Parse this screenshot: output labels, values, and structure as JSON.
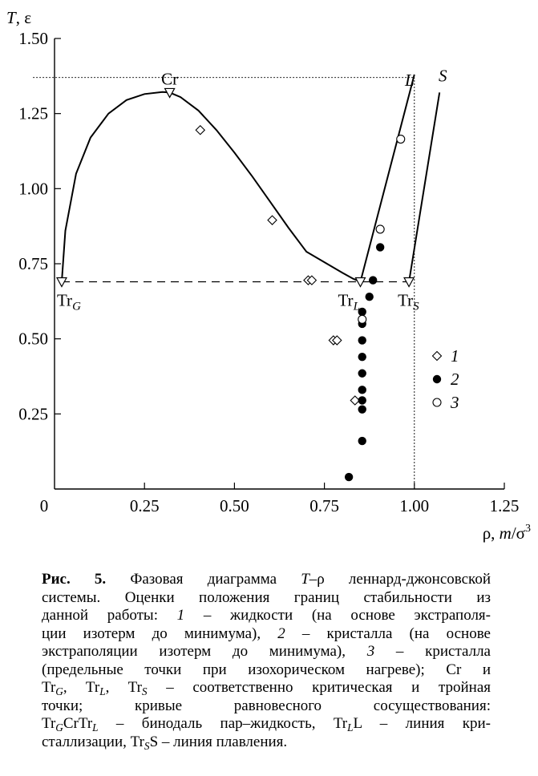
{
  "chart_data": {
    "type": "scatter",
    "title": "",
    "ylabel_parts": [
      "T",
      ", ε"
    ],
    "xlabel_parts": [
      "ρ, ",
      "m",
      "/σ",
      "3"
    ],
    "xlim": [
      0,
      1.25
    ],
    "ylim": [
      0,
      1.5
    ],
    "xticks": [
      0,
      0.25,
      0.5,
      0.75,
      1.0,
      1.25
    ],
    "xtick_labels": [
      "0",
      "0.25",
      "0.50",
      "0.75",
      "1.00",
      "1.25"
    ],
    "yticks": [
      0.25,
      0.5,
      0.75,
      1.0,
      1.25,
      1.5
    ],
    "ytick_labels": [
      "0.25",
      "0.50",
      "0.75",
      "1.00",
      "1.25",
      "1.50"
    ],
    "series": [
      {
        "name": "1",
        "marker": "diamond-open",
        "x": [
          0.405,
          0.605,
          0.705,
          0.715,
          0.775,
          0.785,
          0.835
        ],
        "y": [
          1.195,
          0.895,
          0.695,
          0.695,
          0.495,
          0.495,
          0.295
        ]
      },
      {
        "name": "2",
        "marker": "circle-filled",
        "x": [
          0.818,
          0.855,
          0.855,
          0.855,
          0.855,
          0.855,
          0.855,
          0.855,
          0.855,
          0.855,
          0.875,
          0.885,
          0.905
        ],
        "y": [
          0.04,
          0.16,
          0.265,
          0.295,
          0.33,
          0.385,
          0.44,
          0.495,
          0.55,
          0.59,
          0.64,
          0.695,
          0.805
        ]
      },
      {
        "name": "3",
        "marker": "circle-open",
        "x": [
          0.855,
          0.905,
          0.962
        ],
        "y": [
          0.565,
          0.865,
          1.165
        ]
      }
    ],
    "lines": [
      {
        "label": "Tr_G Cr Tr_L binodal",
        "style": "solid",
        "x": [
          0.02,
          0.03,
          0.06,
          0.1,
          0.15,
          0.2,
          0.25,
          0.3,
          0.32,
          0.35,
          0.4,
          0.45,
          0.5,
          0.55,
          0.6,
          0.65,
          0.7,
          0.75,
          0.8,
          0.83,
          0.85
        ],
        "y": [
          0.69,
          0.86,
          1.05,
          1.17,
          1.25,
          1.295,
          1.315,
          1.322,
          1.32,
          1.305,
          1.26,
          1.195,
          1.12,
          1.04,
          0.955,
          0.87,
          0.79,
          0.755,
          0.72,
          0.7,
          0.69
        ]
      },
      {
        "label": "L",
        "style": "solid",
        "x": [
          0.85,
          1.0
        ],
        "y": [
          0.69,
          1.38
        ]
      },
      {
        "label": "S",
        "style": "solid",
        "x": [
          0.985,
          1.07
        ],
        "y": [
          0.69,
          1.32
        ]
      },
      {
        "label": "triple line",
        "style": "dashed",
        "x": [
          0.02,
          0.985
        ],
        "y": [
          0.69,
          0.69
        ]
      },
      {
        "label": "Cr level guide",
        "style": "dotted",
        "x": [
          -0.06,
          1.0
        ],
        "y": [
          1.37,
          1.37
        ]
      },
      {
        "label": "rho=1 guide",
        "style": "dotted",
        "x": [
          1.0,
          1.0
        ],
        "y": [
          0.0,
          1.37
        ]
      }
    ],
    "points": [
      {
        "name": "Cr",
        "x": 0.32,
        "y": 1.32,
        "label": "Cr"
      },
      {
        "name": "Tr_G",
        "x": 0.02,
        "y": 0.69,
        "label": "Tr",
        "sub": "G"
      },
      {
        "name": "Tr_L",
        "x": 0.85,
        "y": 0.69,
        "label": "Tr",
        "sub": "L"
      },
      {
        "name": "Tr_S",
        "x": 0.985,
        "y": 0.69,
        "label": "Tr",
        "sub": "S"
      }
    ],
    "curve_labels": [
      "L",
      "S"
    ],
    "legend": {
      "placement": "right",
      "entries": [
        "1",
        "2",
        "3"
      ]
    },
    "grid": false
  },
  "caption": {
    "lines": [
      [
        {
          "t": "Рис. 5.",
          "b": 1
        },
        {
          "t": " Фазовая диаграмма "
        },
        {
          "t": "T",
          "i": 1
        },
        {
          "t": "–ρ леннард-джонсовской"
        }
      ],
      [
        {
          "t": "системы. Оценки положения границ стабильности из"
        }
      ],
      [
        {
          "t": "данной работы: "
        },
        {
          "t": "1",
          "i": 1
        },
        {
          "t": " – жидкости (на основе экстраполя-"
        }
      ],
      [
        {
          "t": "ции изотерм до минимума), "
        },
        {
          "t": "2",
          "i": 1
        },
        {
          "t": " – кристалла (на основе"
        }
      ],
      [
        {
          "t": "экстраполяции изотерм до минимума), "
        },
        {
          "t": "3",
          "i": 1
        },
        {
          "t": " – кристалла"
        }
      ],
      [
        {
          "t": "(предельные точки при изохорическом нагреве); Cr и"
        }
      ],
      [
        {
          "t": "Tr"
        },
        {
          "t": "G",
          "sub": 1
        },
        {
          "t": ", Tr"
        },
        {
          "t": "L",
          "sub": 1
        },
        {
          "t": ", Tr"
        },
        {
          "t": "S",
          "sub": 1
        },
        {
          "t": " – соответственно критическая и тройная"
        }
      ],
      [
        {
          "t": "точки; кривые равновесного сосуществования:"
        }
      ],
      [
        {
          "t": "Tr"
        },
        {
          "t": "G",
          "sub": 1
        },
        {
          "t": "CrTr"
        },
        {
          "t": "L",
          "sub": 1
        },
        {
          "t": " – бинодаль пар–жидкость, Tr"
        },
        {
          "t": "L",
          "sub": 1
        },
        {
          "t": "L – линия кри-"
        }
      ],
      [
        {
          "t": "сталлизации, Tr"
        },
        {
          "t": "S",
          "sub": 1
        },
        {
          "t": "S – линия плавления."
        }
      ]
    ]
  }
}
